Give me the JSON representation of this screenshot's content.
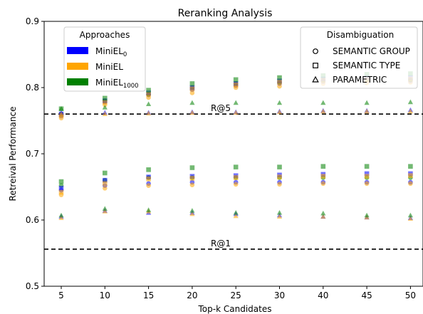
{
  "chart_data": {
    "type": "scatter",
    "title": "Reranking Analysis",
    "xlabel": "Top-k Candidates",
    "ylabel": "Retreival Performance",
    "categories": [
      "5",
      "10",
      "15",
      "20",
      "25",
      "30",
      "40",
      "45",
      "50"
    ],
    "ylim": [
      0.5,
      0.9
    ],
    "yticks": [
      "0.5",
      "0.6",
      "0.7",
      "0.8",
      "0.9"
    ],
    "grid": false,
    "reference_lines": [
      {
        "label": "R@5",
        "value": 0.76
      },
      {
        "label": "R@1",
        "value": 0.556
      }
    ],
    "legend_approaches": {
      "title": "Approaches",
      "placement": "top-left",
      "items": [
        {
          "label": "MiniEL",
          "subscript": "0",
          "color": "#0000ff"
        },
        {
          "label": "MiniEL",
          "subscript": "",
          "color": "#ffa500"
        },
        {
          "label": "MiniEL",
          "subscript": "1000",
          "color": "#008000"
        }
      ]
    },
    "legend_disambiguation": {
      "title": "Disambiguation",
      "placement": "top-right",
      "items": [
        {
          "label": "SEMANTIC GROUP",
          "marker": "circle"
        },
        {
          "label": "SEMANTIC TYPE",
          "marker": "square"
        },
        {
          "label": "PARAMETRIC",
          "marker": "triangle"
        }
      ]
    },
    "series": [
      {
        "approach": "MiniEL0",
        "color": "#0000ff",
        "marker": "circle",
        "values": [
          0.645,
          0.652,
          0.655,
          0.657,
          0.657,
          0.657,
          0.657,
          0.657,
          0.657
        ]
      },
      {
        "approach": "MiniEL",
        "color": "#ffa500",
        "marker": "circle",
        "values": [
          0.638,
          0.648,
          0.652,
          0.653,
          0.654,
          0.654,
          0.655,
          0.655,
          0.655
        ]
      },
      {
        "approach": "MiniEL1000",
        "color": "#008000",
        "marker": "circle",
        "values": [
          0.652,
          0.66,
          0.664,
          0.664,
          0.664,
          0.664,
          0.664,
          0.664,
          0.664
        ]
      },
      {
        "approach": "MiniEL0",
        "color": "#0000ff",
        "marker": "square",
        "values": [
          0.648,
          0.66,
          0.665,
          0.666,
          0.667,
          0.668,
          0.669,
          0.67,
          0.67
        ]
      },
      {
        "approach": "MiniEL",
        "color": "#ffa500",
        "marker": "square",
        "values": [
          0.642,
          0.655,
          0.662,
          0.663,
          0.664,
          0.665,
          0.666,
          0.666,
          0.667
        ]
      },
      {
        "approach": "MiniEL1000",
        "color": "#008000",
        "marker": "square",
        "values": [
          0.658,
          0.671,
          0.676,
          0.679,
          0.68,
          0.68,
          0.681,
          0.681,
          0.681
        ]
      },
      {
        "approach": "MiniEL0",
        "color": "#0000ff",
        "marker": "triangle",
        "values": [
          0.605,
          0.614,
          0.611,
          0.611,
          0.609,
          0.607,
          0.605,
          0.604,
          0.603
        ]
      },
      {
        "approach": "MiniEL",
        "color": "#ffa500",
        "marker": "triangle",
        "values": [
          0.603,
          0.613,
          0.613,
          0.609,
          0.606,
          0.605,
          0.605,
          0.604,
          0.602
        ]
      },
      {
        "approach": "MiniEL1000",
        "color": "#008000",
        "marker": "triangle",
        "values": [
          0.607,
          0.617,
          0.615,
          0.614,
          0.611,
          0.611,
          0.61,
          0.607,
          0.607
        ]
      },
      {
        "approach": "MiniEL0",
        "color": "#0000ff",
        "marker": "circle",
        "values": [
          0.757,
          0.778,
          0.789,
          0.797,
          0.803,
          0.806,
          0.809,
          0.81,
          0.81
        ]
      },
      {
        "approach": "MiniEL",
        "color": "#ffa500",
        "marker": "circle",
        "values": [
          0.754,
          0.774,
          0.785,
          0.792,
          0.8,
          0.802,
          0.806,
          0.807,
          0.808
        ]
      },
      {
        "approach": "MiniEL1000",
        "color": "#008000",
        "marker": "circle",
        "values": [
          0.76,
          0.78,
          0.79,
          0.8,
          0.806,
          0.808,
          0.811,
          0.812,
          0.812
        ]
      },
      {
        "approach": "MiniEL0",
        "color": "#0000ff",
        "marker": "square",
        "values": [
          0.76,
          0.78,
          0.792,
          0.8,
          0.806,
          0.81,
          0.813,
          0.815,
          0.815
        ]
      },
      {
        "approach": "MiniEL",
        "color": "#ffa500",
        "marker": "square",
        "values": [
          0.758,
          0.778,
          0.79,
          0.798,
          0.804,
          0.808,
          0.811,
          0.812,
          0.813
        ]
      },
      {
        "approach": "MiniEL1000",
        "color": "#008000",
        "marker": "square",
        "values": [
          0.768,
          0.784,
          0.796,
          0.806,
          0.812,
          0.815,
          0.818,
          0.82,
          0.821
        ]
      },
      {
        "approach": "MiniEL0",
        "color": "#0000ff",
        "marker": "triangle",
        "values": [
          0.762,
          0.762,
          0.762,
          0.763,
          0.763,
          0.764,
          0.765,
          0.765,
          0.766
        ]
      },
      {
        "approach": "MiniEL",
        "color": "#ffa500",
        "marker": "triangle",
        "values": [
          0.76,
          0.76,
          0.761,
          0.762,
          0.762,
          0.763,
          0.764,
          0.764,
          0.764
        ]
      },
      {
        "approach": "MiniEL1000",
        "color": "#008000",
        "marker": "triangle",
        "values": [
          0.768,
          0.77,
          0.775,
          0.777,
          0.777,
          0.777,
          0.777,
          0.777,
          0.778
        ]
      }
    ]
  }
}
